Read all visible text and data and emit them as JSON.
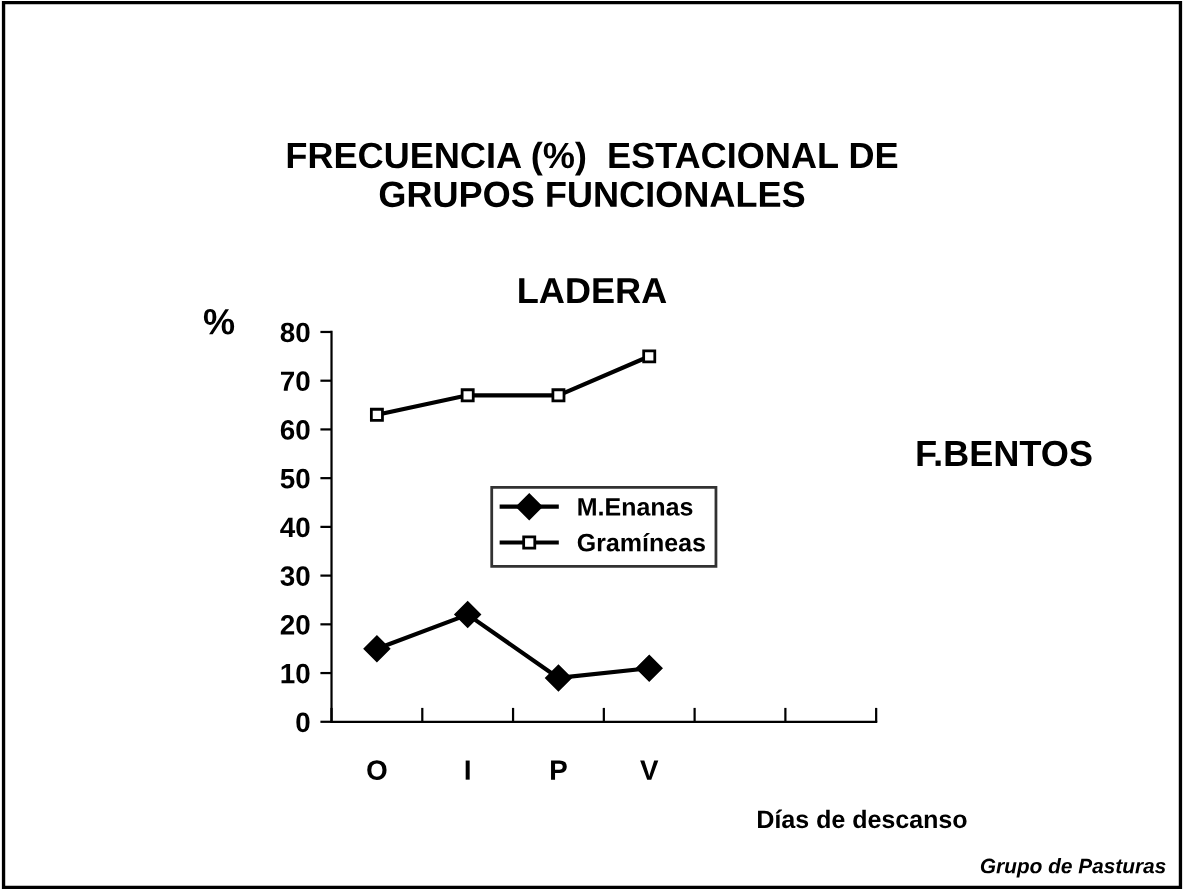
{
  "chart_data": {
    "type": "line",
    "title": "FRECUENCIA (%)  ESTACIONAL DE\nGRUPOS FUNCIONALES",
    "subtitle": "LADERA",
    "ylabel": "%",
    "xlabel": "Días de descanso",
    "annotations": [
      "F.BENTOS",
      "Grupo de Pasturas"
    ],
    "categories": [
      "O",
      "I",
      "P",
      "V",
      null,
      null
    ],
    "series": [
      {
        "name": "M.Enanas",
        "color": "#000000",
        "marker": "diamond",
        "values": [
          15,
          22,
          9,
          11,
          null,
          null
        ]
      },
      {
        "name": "Gramíneas",
        "color": "#000000",
        "marker": "square",
        "values": [
          63,
          67,
          67,
          75,
          null,
          null
        ]
      }
    ],
    "ylim": [
      0,
      80
    ],
    "yticks": [
      0,
      10,
      20,
      30,
      40,
      50,
      60,
      70,
      80
    ],
    "grid": false,
    "legend": "center",
    "line_style": "solid"
  }
}
